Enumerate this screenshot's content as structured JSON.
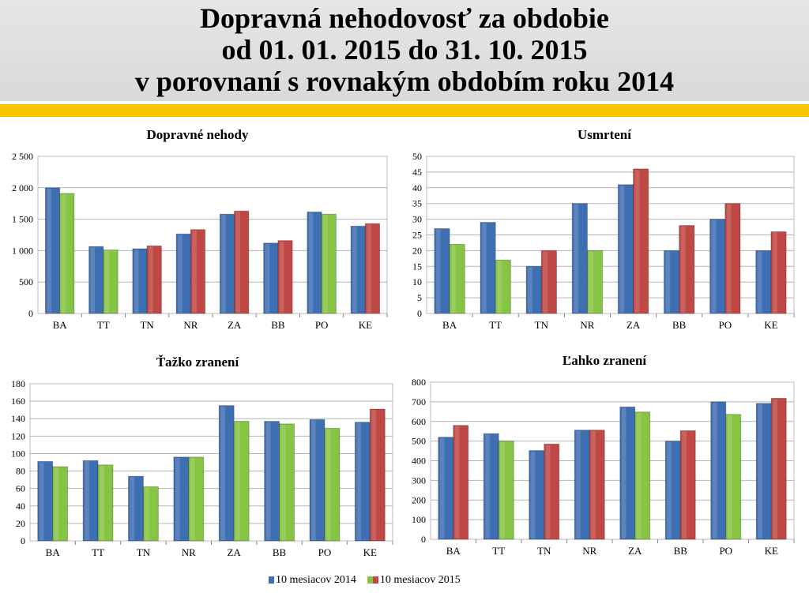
{
  "title": {
    "line1": "Dopravná nehodovosť za obdobie",
    "line2": "od 01. 01. 2015 do 31. 10. 2015",
    "line3": "v porovnaní s rovnakým obdobím roku 2014"
  },
  "legend": {
    "s2014": "10 mesiacov 2014",
    "s2015": "10 mesiacov 2015"
  },
  "colors": {
    "blue": "#3f6fb3",
    "green": "#86c443",
    "red": "#bf4744",
    "yellow": "#f7c600"
  },
  "chart_data": [
    {
      "type": "bar",
      "title": "Dopravné nehody",
      "categories": [
        "BA",
        "TT",
        "TN",
        "NR",
        "ZA",
        "BB",
        "PO",
        "KE"
      ],
      "ylim": [
        0,
        2500
      ],
      "ystep": 500,
      "yticks": [
        "0",
        "500",
        "1 000",
        "1 500",
        "2 000",
        "2 500"
      ],
      "series": [
        {
          "name": "10 mesiacov 2014",
          "values": [
            2000,
            1065,
            1030,
            1265,
            1580,
            1120,
            1615,
            1390
          ]
        },
        {
          "name": "10 mesiacov 2015",
          "values": [
            1910,
            1010,
            1075,
            1335,
            1630,
            1160,
            1580,
            1430
          ],
          "colors": [
            "green",
            "green",
            "red",
            "red",
            "red",
            "red",
            "green",
            "red"
          ]
        }
      ]
    },
    {
      "type": "bar",
      "title": "Usmrtení",
      "categories": [
        "BA",
        "TT",
        "TN",
        "NR",
        "ZA",
        "BB",
        "PO",
        "KE"
      ],
      "ylim": [
        0,
        50
      ],
      "ystep": 5,
      "yticks": [
        "0",
        "5",
        "10",
        "15",
        "20",
        "25",
        "30",
        "35",
        "40",
        "45",
        "50"
      ],
      "series": [
        {
          "name": "10 mesiacov 2014",
          "values": [
            27,
            29,
            15,
            35,
            41,
            20,
            30,
            20
          ]
        },
        {
          "name": "10 mesiacov 2015",
          "values": [
            22,
            17,
            20,
            20,
            46,
            28,
            35,
            26
          ],
          "colors": [
            "green",
            "green",
            "red",
            "green",
            "red",
            "red",
            "red",
            "red"
          ]
        }
      ]
    },
    {
      "type": "bar",
      "title": "Ťažko zranení",
      "categories": [
        "BA",
        "TT",
        "TN",
        "NR",
        "ZA",
        "BB",
        "PO",
        "KE"
      ],
      "ylim": [
        0,
        180
      ],
      "ystep": 20,
      "yticks": [
        "0",
        "20",
        "40",
        "60",
        "80",
        "100",
        "120",
        "140",
        "160",
        "180"
      ],
      "series": [
        {
          "name": "10 mesiacov 2014",
          "values": [
            91,
            92,
            74,
            96,
            155,
            137,
            139,
            136
          ]
        },
        {
          "name": "10 mesiacov 2015",
          "values": [
            85,
            87,
            62,
            96,
            137,
            134,
            129,
            151
          ],
          "colors": [
            "green",
            "green",
            "green",
            "green",
            "green",
            "green",
            "green",
            "red"
          ]
        }
      ]
    },
    {
      "type": "bar",
      "title": "Ľahko zranení",
      "categories": [
        "BA",
        "TT",
        "TN",
        "NR",
        "ZA",
        "BB",
        "PO",
        "KE"
      ],
      "ylim": [
        0,
        800
      ],
      "ystep": 100,
      "yticks": [
        "0",
        "100",
        "200",
        "300",
        "400",
        "500",
        "600",
        "700",
        "800"
      ],
      "series": [
        {
          "name": "10 mesiacov 2014",
          "values": [
            520,
            538,
            452,
            556,
            674,
            500,
            700,
            692
          ]
        },
        {
          "name": "10 mesiacov 2015",
          "values": [
            580,
            500,
            485,
            556,
            648,
            553,
            636,
            718
          ],
          "colors": [
            "red",
            "green",
            "red",
            "red",
            "green",
            "red",
            "green",
            "red"
          ]
        }
      ]
    }
  ]
}
